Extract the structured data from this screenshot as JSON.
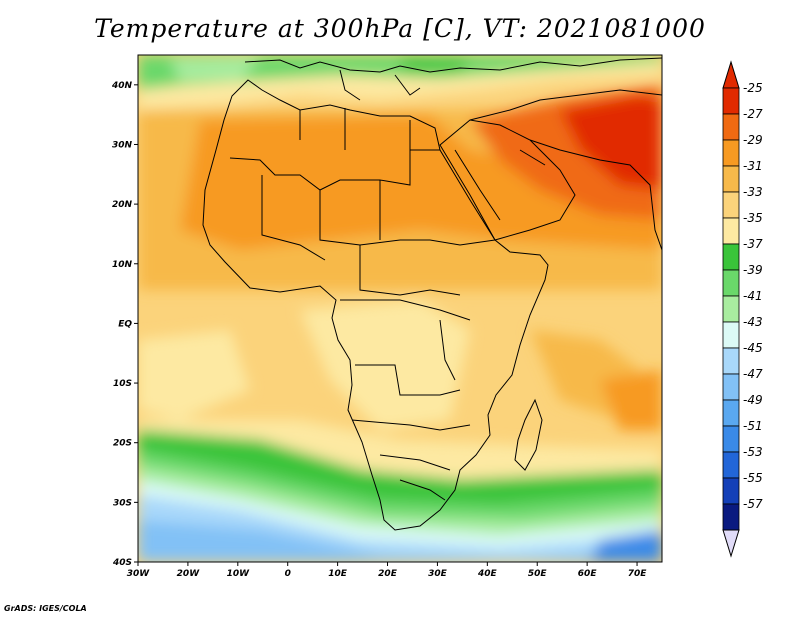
{
  "title": "Temperature at 300hPa [C], VT: 2021081000",
  "credit": "GrADS: IGES/COLA",
  "map": {
    "lon_range": [
      -30,
      75
    ],
    "lat_range": [
      -40,
      45
    ],
    "x_ticks": [
      {
        "lon": -30,
        "label": "30W"
      },
      {
        "lon": -20,
        "label": "20W"
      },
      {
        "lon": -10,
        "label": "10W"
      },
      {
        "lon": 0,
        "label": "0"
      },
      {
        "lon": 10,
        "label": "10E"
      },
      {
        "lon": 20,
        "label": "20E"
      },
      {
        "lon": 30,
        "label": "30E"
      },
      {
        "lon": 40,
        "label": "40E"
      },
      {
        "lon": 50,
        "label": "50E"
      },
      {
        "lon": 60,
        "label": "60E"
      },
      {
        "lon": 70,
        "label": "70E"
      }
    ],
    "y_ticks": [
      {
        "lat": 40,
        "label": "40N"
      },
      {
        "lat": 30,
        "label": "30N"
      },
      {
        "lat": 20,
        "label": "20N"
      },
      {
        "lat": 10,
        "label": "10N"
      },
      {
        "lat": 0,
        "label": "EQ"
      },
      {
        "lat": -10,
        "label": "10S"
      },
      {
        "lat": -20,
        "label": "20S"
      },
      {
        "lat": -30,
        "label": "30S"
      },
      {
        "lat": -40,
        "label": "40S"
      }
    ]
  },
  "colorbar": {
    "levels": [
      {
        "label": "-25",
        "color": "#e12a00"
      },
      {
        "label": "-27",
        "color": "#f06a12"
      },
      {
        "label": "-29",
        "color": "#f79a22"
      },
      {
        "label": "-31",
        "color": "#f7b94a"
      },
      {
        "label": "-33",
        "color": "#fbd37b"
      },
      {
        "label": "-35",
        "color": "#fde9a2"
      },
      {
        "label": "-37",
        "color": "#3ac43a"
      },
      {
        "label": "-39",
        "color": "#6ad86a"
      },
      {
        "label": "-41",
        "color": "#a9eda0"
      },
      {
        "label": "-43",
        "color": "#dcfaf6"
      },
      {
        "label": "-45",
        "color": "#a9d8fa"
      },
      {
        "label": "-47",
        "color": "#82c1f6"
      },
      {
        "label": "-49",
        "color": "#5aa8f0"
      },
      {
        "label": "-51",
        "color": "#3a8ae8"
      },
      {
        "label": "-53",
        "color": "#2266d8"
      },
      {
        "label": "-55",
        "color": "#1440b8"
      },
      {
        "label": "-57",
        "color": "#0a1a80"
      }
    ],
    "top_arrow_color": "#e12a00",
    "bottom_arrow_color": "#e1dcf8"
  }
}
